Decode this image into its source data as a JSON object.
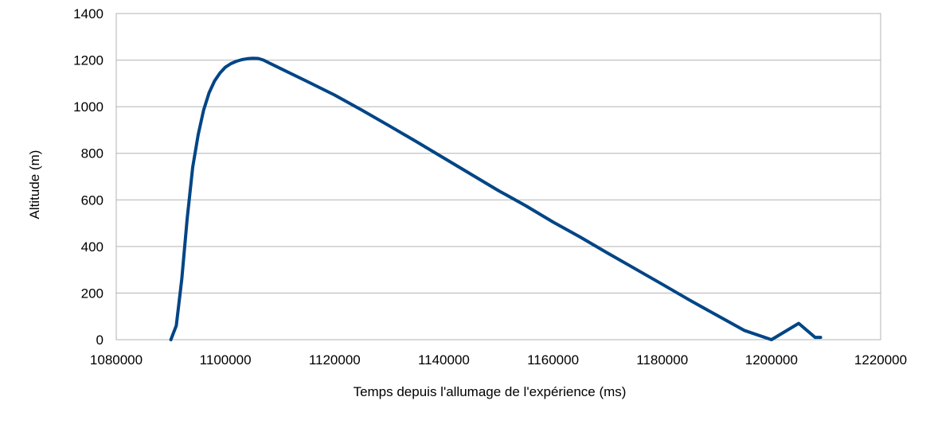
{
  "chart_data": {
    "type": "line",
    "title": "",
    "xlabel": "Temps depuis l'allumage de l'expérience (ms)",
    "ylabel": "Altitude (m)",
    "xlim": [
      1080000,
      1220000
    ],
    "ylim": [
      0,
      1400
    ],
    "x_ticks": [
      "1080000",
      "1100000",
      "1120000",
      "1140000",
      "1160000",
      "1180000",
      "1200000",
      "1220000"
    ],
    "y_ticks": [
      "0",
      "200",
      "400",
      "600",
      "800",
      "1000",
      "1200",
      "1400"
    ],
    "grid": true,
    "legend": false,
    "series": [
      {
        "color": "#004586",
        "x": [
          1090000,
          1091000,
          1092000,
          1093000,
          1094000,
          1095000,
          1096000,
          1097000,
          1098000,
          1099000,
          1100000,
          1101000,
          1102000,
          1103000,
          1104000,
          1105000,
          1106000,
          1107000,
          1108000,
          1110000,
          1115000,
          1120000,
          1125000,
          1130000,
          1135000,
          1140000,
          1145000,
          1150000,
          1155000,
          1160000,
          1165000,
          1170000,
          1175000,
          1180000,
          1185000,
          1190000,
          1195000,
          1200000,
          1205000,
          1208000,
          1209000
        ],
        "y": [
          0,
          60,
          260,
          520,
          740,
          880,
          985,
          1060,
          1110,
          1145,
          1170,
          1185,
          1195,
          1202,
          1206,
          1208,
          1207,
          1200,
          1188,
          1165,
          1108,
          1050,
          985,
          918,
          850,
          780,
          710,
          640,
          575,
          505,
          440,
          372,
          305,
          238,
          170,
          105,
          40,
          -20,
          70,
          10,
          10
        ]
      }
    ]
  }
}
